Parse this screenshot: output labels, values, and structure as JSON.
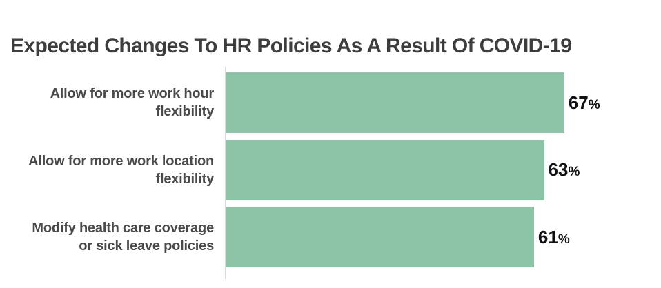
{
  "chart_data": {
    "type": "bar",
    "orientation": "horizontal",
    "title": "Expected Changes To HR Policies As A Result Of COVID-19",
    "categories": [
      "Allow for more work hour\nflexibility",
      "Allow for more work location\nflexibility",
      "Modify health care coverage\nor sick leave policies"
    ],
    "values": [
      67,
      63,
      61
    ],
    "value_suffix": "%",
    "value_labels": [
      "67%",
      "63%",
      "61%"
    ],
    "xlim": [
      0,
      100
    ],
    "grid": false,
    "legend": false,
    "colors": {
      "bar": "#8dc3a7",
      "axis_line": "#dadada",
      "title_text": "#3d3d3d",
      "category_text": "#4a4a4a",
      "value_text": "#111111",
      "background": "#ffffff"
    }
  }
}
